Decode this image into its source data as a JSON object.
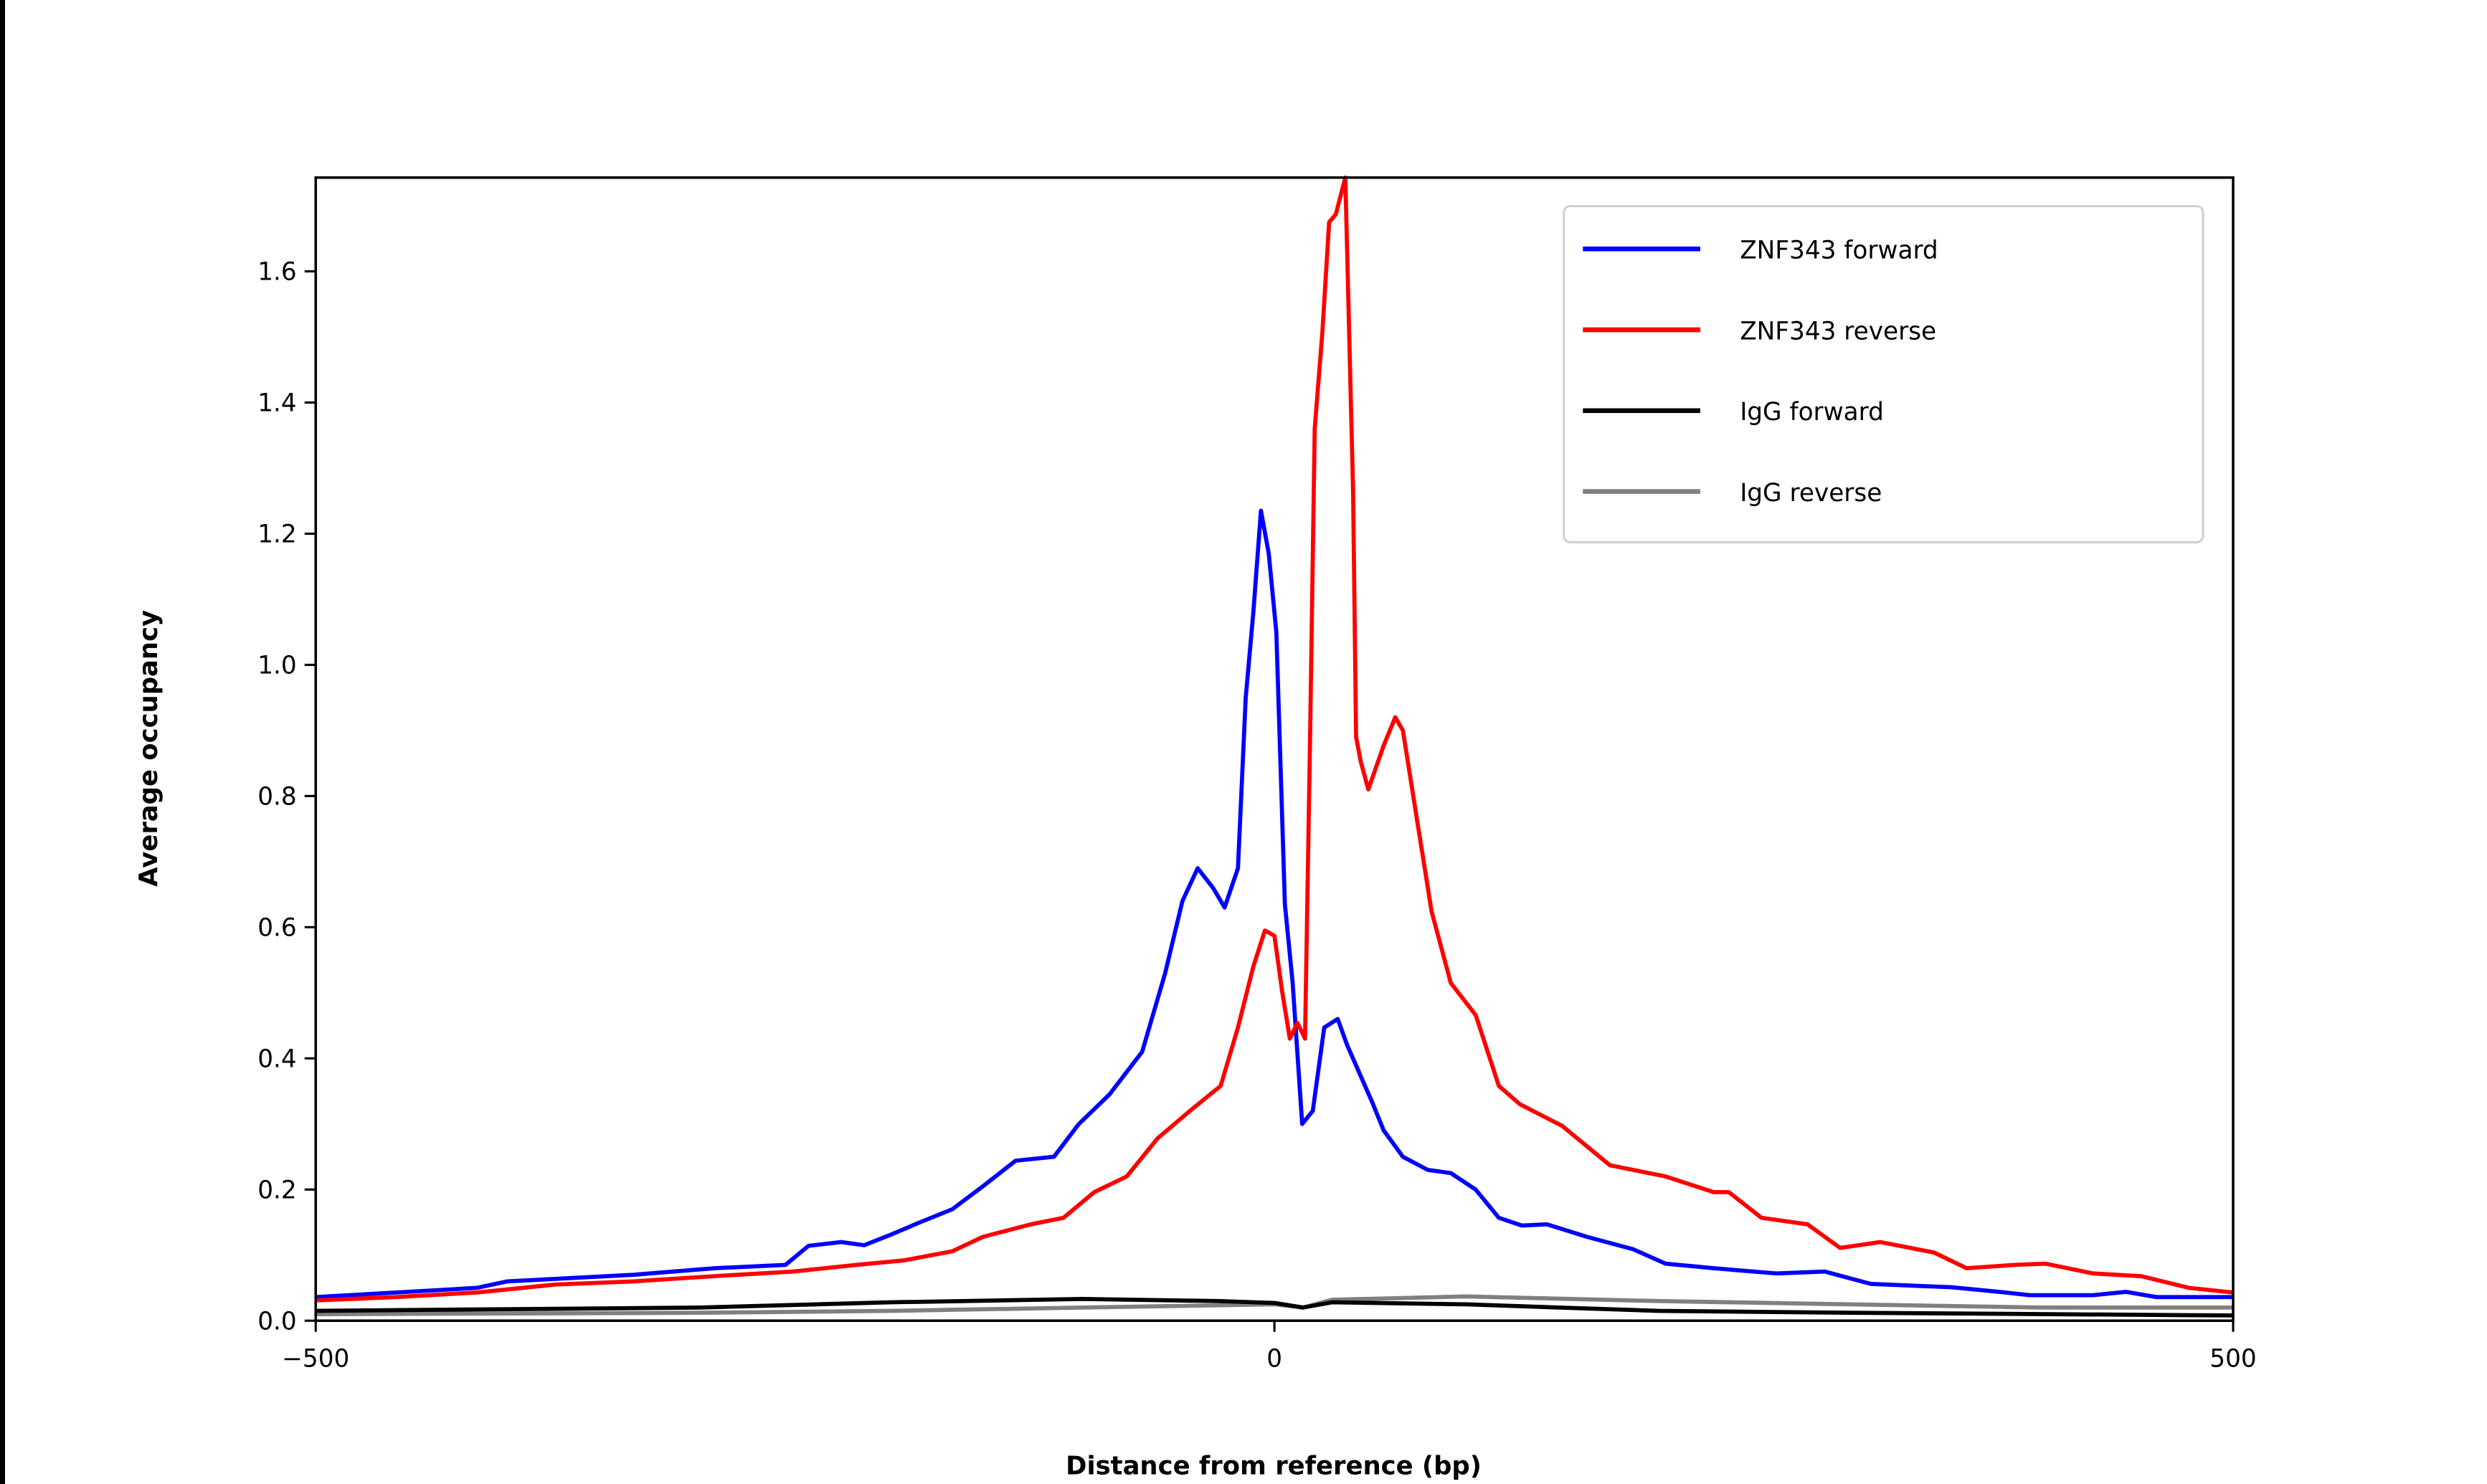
{
  "chart_data": {
    "type": "line",
    "title": "",
    "xlabel": "Distance from reference (bp)",
    "ylabel": "Average occupancy",
    "xlim": [
      -500,
      500
    ],
    "ylim": [
      0,
      1.743
    ],
    "xticks": [
      -500,
      0,
      500
    ],
    "xtick_labels": [
      "−500",
      "0",
      "500"
    ],
    "yticks": [
      0.0,
      0.2,
      0.4,
      0.6,
      0.8,
      1.0,
      1.2,
      1.4,
      1.6
    ],
    "ytick_labels": [
      "0.0",
      "0.2",
      "0.4",
      "0.6",
      "0.8",
      "1.0",
      "1.2",
      "1.4",
      "1.6"
    ],
    "grid": false,
    "legend_position": "top-right",
    "series": [
      {
        "name": "ZNF343 forward",
        "color": "#0000ff",
        "x": [
          -500,
          -458,
          -416,
          -400,
          -367,
          -334,
          -292,
          -255,
          -243,
          -226,
          -214,
          -201,
          -185,
          -168,
          -152,
          -135,
          -115,
          -102,
          -86,
          -69,
          -57,
          -48,
          -40,
          -32,
          -26,
          -19,
          -15,
          -11,
          -7,
          -3,
          1,
          5.5,
          9.5,
          14.5,
          20,
          26,
          33,
          38,
          51,
          57,
          67,
          80,
          92,
          105,
          117,
          129,
          142,
          163,
          187,
          204,
          229,
          262,
          287,
          311,
          353,
          378,
          394,
          427,
          444,
          460,
          500
        ],
        "y": [
          0.036,
          0.043,
          0.05,
          0.06,
          0.065,
          0.07,
          0.08,
          0.085,
          0.114,
          0.12,
          0.115,
          0.13,
          0.15,
          0.17,
          0.205,
          0.244,
          0.25,
          0.3,
          0.345,
          0.41,
          0.53,
          0.64,
          0.69,
          0.66,
          0.63,
          0.69,
          0.95,
          1.08,
          1.235,
          1.17,
          1.05,
          0.635,
          0.515,
          0.3,
          0.32,
          0.447,
          0.46,
          0.42,
          0.333,
          0.29,
          0.25,
          0.23,
          0.225,
          0.2,
          0.157,
          0.145,
          0.147,
          0.128,
          0.109,
          0.087,
          0.08,
          0.072,
          0.075,
          0.056,
          0.051,
          0.044,
          0.039,
          0.039,
          0.044,
          0.036,
          0.036
        ]
      },
      {
        "name": "ZNF343 reverse",
        "color": "#ff0000",
        "x": [
          -500,
          -458,
          -416,
          -375,
          -334,
          -292,
          -251,
          -218,
          -193,
          -168,
          -152,
          -127,
          -110,
          -94,
          -77,
          -61,
          -44,
          -28,
          -19,
          -11,
          -5,
          0,
          4,
          8,
          12,
          16,
          18.5,
          21,
          25,
          28.5,
          32,
          37,
          41,
          42.6,
          45,
          49,
          57,
          63,
          67,
          74,
          82,
          92,
          105,
          117,
          128,
          150,
          175,
          204,
          229,
          237,
          254,
          278,
          295,
          316,
          344,
          361,
          386,
          402,
          427,
          452,
          477,
          500
        ],
        "y": [
          0.031,
          0.036,
          0.043,
          0.055,
          0.06,
          0.068,
          0.075,
          0.085,
          0.092,
          0.106,
          0.128,
          0.147,
          0.157,
          0.196,
          0.22,
          0.278,
          0.32,
          0.358,
          0.447,
          0.54,
          0.595,
          0.587,
          0.503,
          0.43,
          0.454,
          0.43,
          0.877,
          1.36,
          1.506,
          1.675,
          1.687,
          1.743,
          1.264,
          0.89,
          0.853,
          0.81,
          0.877,
          0.92,
          0.9,
          0.77,
          0.624,
          0.515,
          0.466,
          0.358,
          0.33,
          0.297,
          0.237,
          0.22,
          0.196,
          0.196,
          0.157,
          0.147,
          0.111,
          0.12,
          0.104,
          0.08,
          0.085,
          0.087,
          0.072,
          0.068,
          0.05,
          0.043
        ]
      },
      {
        "name": "IgG forward",
        "color": "#000000",
        "x": [
          -500,
          -300,
          -200,
          -100,
          -30,
          0,
          15,
          30,
          100,
          200,
          300,
          500
        ],
        "y": [
          0.015,
          0.02,
          0.028,
          0.033,
          0.03,
          0.027,
          0.02,
          0.028,
          0.025,
          0.015,
          0.012,
          0.008
        ]
      },
      {
        "name": "IgG reverse",
        "color": "#808080",
        "x": [
          -500,
          -300,
          -200,
          -100,
          0,
          15,
          30,
          100,
          200,
          300,
          400,
          500
        ],
        "y": [
          0.01,
          0.012,
          0.015,
          0.02,
          0.025,
          0.02,
          0.032,
          0.037,
          0.03,
          0.025,
          0.02,
          0.02
        ]
      }
    ]
  }
}
